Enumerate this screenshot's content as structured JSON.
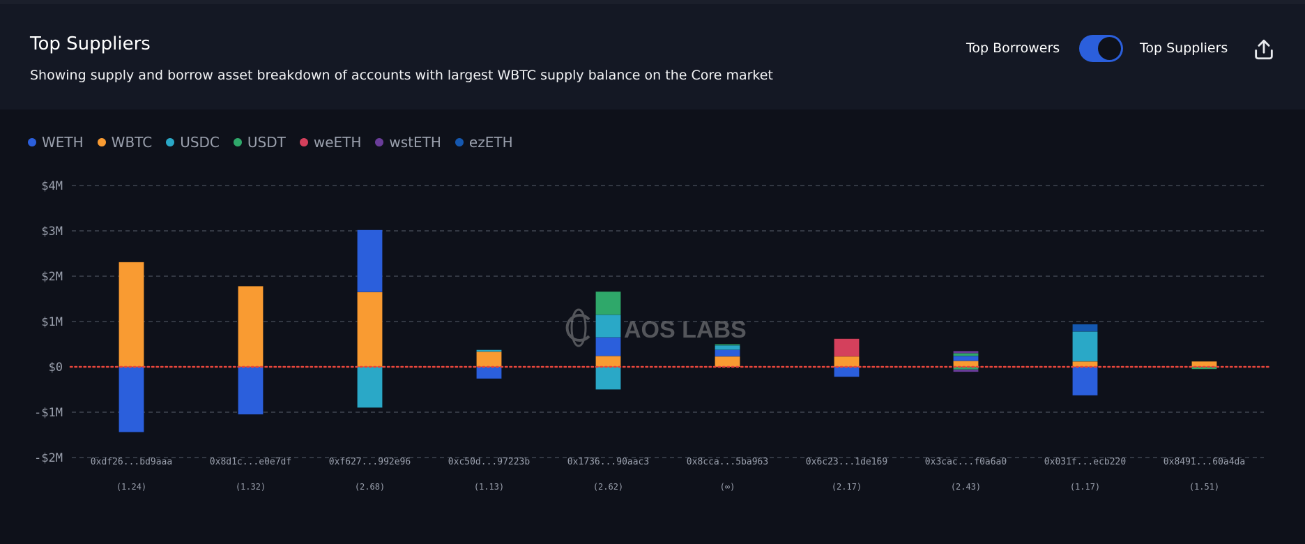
{
  "header": {
    "title": "Top Suppliers",
    "subtitle": "Showing supply and borrow asset breakdown of accounts with largest WBTC supply balance on the Core market",
    "toggle_left_label": "Top Borrowers",
    "toggle_right_label": "Top Suppliers",
    "toggle_state": "Top Suppliers",
    "share_icon": "share-upload-icon"
  },
  "watermark": "CHAOS LABS",
  "chart_data": {
    "type": "bar",
    "stacked": true,
    "title": "Top Suppliers",
    "ylabel": "",
    "xlabel": "",
    "ylim": [
      -2000000,
      4000000
    ],
    "yticks": [
      4000000,
      3000000,
      2000000,
      1000000,
      0,
      -1000000,
      -2000000
    ],
    "ytick_labels": [
      "$4M",
      "$3M",
      "$2M",
      "$1M",
      "$0",
      "-$1M",
      "-$2M"
    ],
    "grid": true,
    "legend_position": "top-left",
    "assets": [
      {
        "name": "WETH",
        "color": "#2b5fdc"
      },
      {
        "name": "WBTC",
        "color": "#f99b32"
      },
      {
        "name": "USDC",
        "color": "#2aa8c7"
      },
      {
        "name": "USDT",
        "color": "#2fa86a"
      },
      {
        "name": "weETH",
        "color": "#d4405c"
      },
      {
        "name": "wstETH",
        "color": "#6a3d9a"
      },
      {
        "name": "ezETH",
        "color": "#1558b0"
      }
    ],
    "stack_order": [
      "WBTC",
      "WETH",
      "USDC",
      "USDT",
      "weETH",
      "wstETH",
      "ezETH"
    ],
    "accounts": [
      {
        "label": "0xdf26...bd9aaa",
        "health": "(1.24)",
        "supply": {
          "WBTC": 2310000
        },
        "borrow": {
          "WETH": 1440000
        }
      },
      {
        "label": "0x8d1c...e0e7df",
        "health": "(1.32)",
        "supply": {
          "WBTC": 1780000
        },
        "borrow": {
          "WETH": 1050000
        }
      },
      {
        "label": "0xf627...992e96",
        "health": "(2.68)",
        "supply": {
          "WBTC": 1650000,
          "WETH": 1370000
        },
        "borrow": {
          "USDC": 900000
        }
      },
      {
        "label": "0xc50d...97223b",
        "health": "(1.13)",
        "supply": {
          "WBTC": 335000,
          "USDC": 40000
        },
        "borrow": {
          "WETH": 260000
        }
      },
      {
        "label": "0x1736...90aac3",
        "health": "(2.62)",
        "supply": {
          "WBTC": 240000,
          "WETH": 410000,
          "USDC": 500000,
          "USDT": 510000
        },
        "borrow": {
          "USDC": 500000
        }
      },
      {
        "label": "0x8cca...5ba963",
        "health": "(∞)",
        "supply": {
          "WBTC": 230000,
          "WETH": 145000,
          "USDC": 100000,
          "USDT": 25000
        },
        "borrow": {}
      },
      {
        "label": "0x6c23...1de169",
        "health": "(2.17)",
        "supply": {
          "WBTC": 230000,
          "weETH": 390000
        },
        "borrow": {
          "WETH": 220000
        }
      },
      {
        "label": "0x3cac...f0a6a0",
        "health": "(2.43)",
        "supply": {
          "WBTC": 130000,
          "WETH": 110000,
          "USDT": 60000,
          "wstETH": 50000
        },
        "borrow": {
          "USDT": 60000,
          "wstETH": 50000
        }
      },
      {
        "label": "0x031f...ecb220",
        "health": "(1.17)",
        "supply": {
          "WBTC": 120000,
          "USDC": 660000,
          "ezETH": 160000
        },
        "borrow": {
          "WETH": 630000
        }
      },
      {
        "label": "0x8491...60a4da",
        "health": "(1.51)",
        "supply": {
          "WBTC": 120000
        },
        "borrow": {
          "USDT": 50000
        }
      }
    ],
    "zero_line_color": "#e8463c"
  }
}
